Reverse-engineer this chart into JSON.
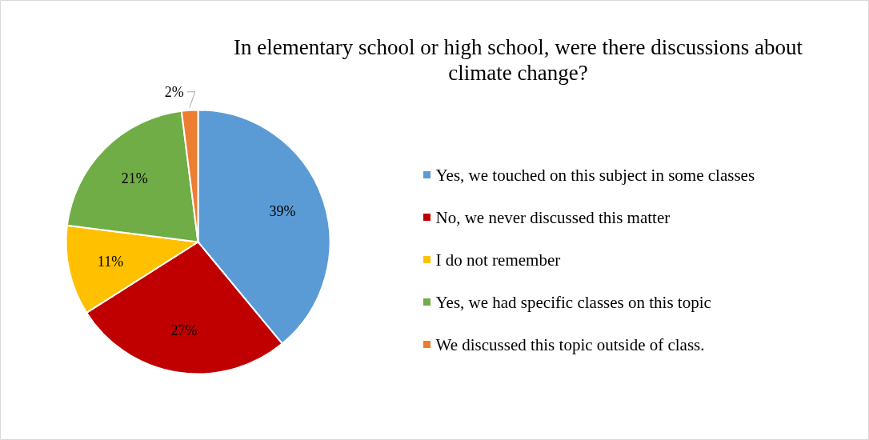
{
  "chart_data": {
    "type": "pie",
    "title": "In elementary school or high school, were there discussions about climate change?",
    "categories": [
      "Yes, we touched on this subject in some classes",
      "No, we never discussed this matter",
      "I do not remember",
      "Yes, we had specific classes on this topic",
      "We discussed this topic outside of class."
    ],
    "values": [
      39,
      27,
      11,
      21,
      2
    ],
    "colors": [
      "#5b9bd5",
      "#c00000",
      "#ffc000",
      "#70ad47",
      "#ed7d31"
    ],
    "value_labels": [
      "39%",
      "27%",
      "11%",
      "21%",
      "2%"
    ],
    "legend": "right"
  }
}
